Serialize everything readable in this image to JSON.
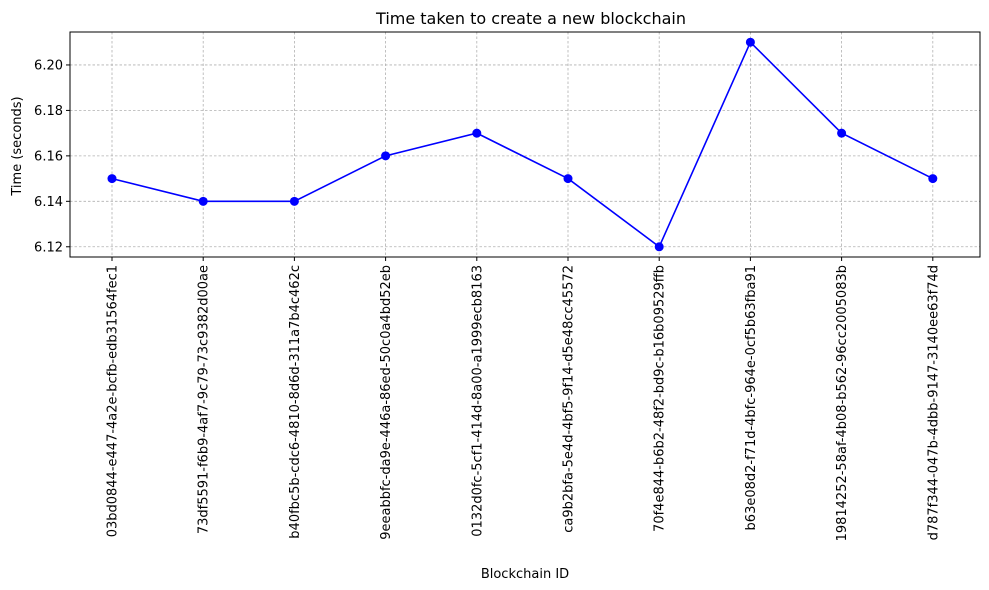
{
  "chart_data": {
    "type": "line",
    "title": "Time taken to create a new blockchain",
    "xlabel": "Blockchain ID",
    "ylabel": "Time (seconds)",
    "categories": [
      "03bd0844-e447-4a2e-bcfb-edb31564fec1",
      "73df5591-f6b9-4af7-9c79-73c9382d00ae",
      "b40fbc5b-cdc6-4810-8d6d-311a7b4c462c",
      "9eeabbfc-da9e-446a-86ed-50c0a4bd52eb",
      "0132d0fc-5cf1-414d-8a00-a1999ecb8163",
      "ca9b2bfa-5e4d-4bf5-9f14-d5e48cc45572",
      "70f4e844-b6b2-48f2-bd9c-b16b09529ffb",
      "b63e08d2-f71d-4bfc-964e-0cf5b63fba91",
      "19814252-58af-4b08-b562-96cc2005083b",
      "d787f344-047b-4dbb-9147-3140ee63f74d"
    ],
    "series": [
      {
        "values": [
          6.15,
          6.14,
          6.14,
          6.16,
          6.17,
          6.15,
          6.12,
          6.21,
          6.17,
          6.15
        ],
        "color": "#0000ff",
        "marker": "circle"
      }
    ],
    "ylim": [
      6.1155,
      6.2145
    ],
    "yticks": [
      "6.12",
      "6.14",
      "6.16",
      "6.18",
      "6.20"
    ],
    "grid": true
  }
}
